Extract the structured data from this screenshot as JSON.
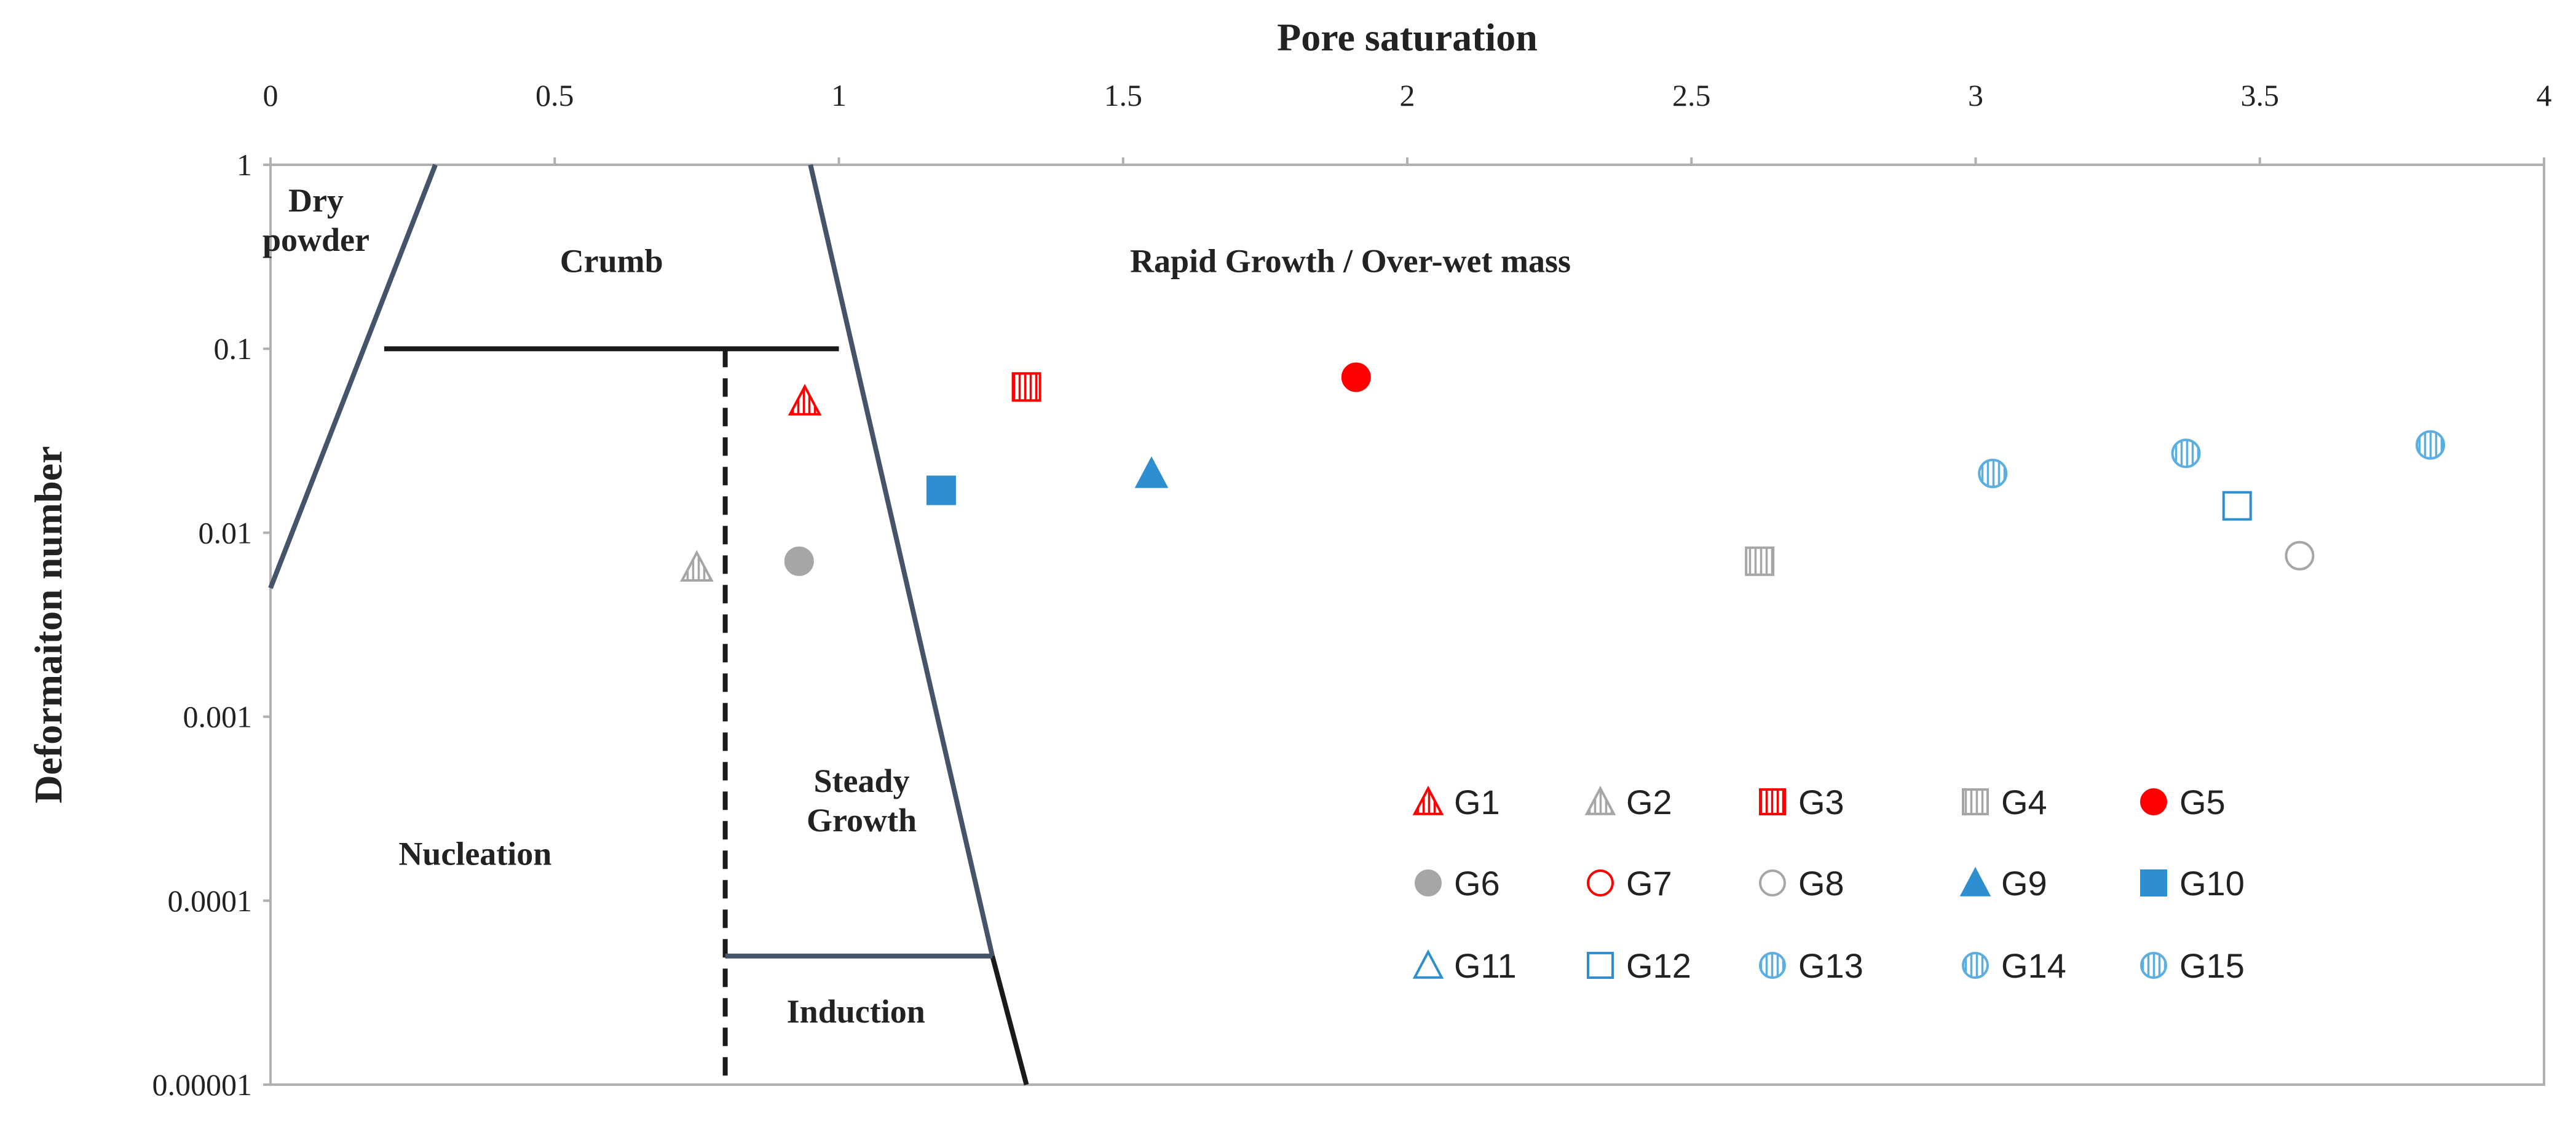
{
  "chart_data": {
    "type": "scatter",
    "title": "",
    "xlabel": "Pore saturation",
    "ylabel": "Deformaiton number",
    "xlim": [
      0,
      4
    ],
    "ylim": [
      1e-05,
      1
    ],
    "yscale": "log",
    "x_axis_position": "top",
    "x_ticks": [
      {
        "value": 0,
        "label": "0"
      },
      {
        "value": 0.5,
        "label": "0.5"
      },
      {
        "value": 1,
        "label": "1"
      },
      {
        "value": 1.5,
        "label": "1.5"
      },
      {
        "value": 2,
        "label": "2"
      },
      {
        "value": 2.5,
        "label": "2.5"
      },
      {
        "value": 3,
        "label": "3"
      },
      {
        "value": 3.5,
        "label": "3.5"
      },
      {
        "value": 4,
        "label": "4"
      }
    ],
    "y_ticks": [
      {
        "value": 1,
        "label": "1"
      },
      {
        "value": 0.1,
        "label": "0.1"
      },
      {
        "value": 0.01,
        "label": "0.01"
      },
      {
        "value": 0.001,
        "label": "0.001"
      },
      {
        "value": 0.0001,
        "label": "0.0001"
      },
      {
        "value": 1e-05,
        "label": "0.00001"
      }
    ],
    "grid": false,
    "legend_position": "bottom-right",
    "regime_lines": [
      {
        "name": "dry-powder-boundary",
        "points": [
          [
            0,
            0.005
          ],
          [
            0.29,
            1
          ]
        ],
        "style": "solid",
        "color": "#44546a"
      },
      {
        "name": "crumb-boundary",
        "points": [
          [
            0.2,
            0.1
          ],
          [
            1.0,
            0.1
          ]
        ],
        "style": "solid",
        "color": "#1a1a1a"
      },
      {
        "name": "rapid-growth-boundary",
        "points": [
          [
            0.95,
            1
          ],
          [
            1.27,
            5e-05
          ]
        ],
        "style": "solid",
        "color": "#44546a"
      },
      {
        "name": "induction-boundary-lower",
        "points": [
          [
            1.27,
            5e-05
          ],
          [
            1.33,
            1e-05
          ]
        ],
        "style": "solid",
        "color": "#1a1a1a"
      },
      {
        "name": "nucleation-divider",
        "points": [
          [
            0.8,
            0.1
          ],
          [
            0.8,
            1e-05
          ]
        ],
        "style": "dashed",
        "color": "#1a1a1a"
      },
      {
        "name": "induction-top",
        "points": [
          [
            0.8,
            5e-05
          ],
          [
            1.27,
            5e-05
          ]
        ],
        "style": "solid",
        "color": "#44546a"
      }
    ],
    "regions": [
      {
        "label_lines": [
          "Dry",
          "powder"
        ],
        "x": 0.08,
        "y": 0.5
      },
      {
        "label_lines": [
          "Crumb"
        ],
        "x": 0.6,
        "y": 0.3
      },
      {
        "label_lines": [
          "Rapid Growth / Over-wet mass"
        ],
        "x": 1.9,
        "y": 0.3
      },
      {
        "label_lines": [
          "Steady",
          "Growth"
        ],
        "x": 1.04,
        "y": 0.00035
      },
      {
        "label_lines": [
          "Nucleation"
        ],
        "x": 0.36,
        "y": 0.00018
      },
      {
        "label_lines": [
          "Induction"
        ],
        "x": 1.03,
        "y": 2.5e-05
      }
    ],
    "series": [
      {
        "name": "G1",
        "color": "#ff0000",
        "marker": "triangle-hatched",
        "x": 0.94,
        "y": 0.052
      },
      {
        "name": "G2",
        "color": "#a6a6a6",
        "marker": "triangle-hatched",
        "x": 0.75,
        "y": 0.0065
      },
      {
        "name": "G3",
        "color": "#ff0000",
        "marker": "square-hatched",
        "x": 1.33,
        "y": 0.062
      },
      {
        "name": "G4",
        "color": "#a6a6a6",
        "marker": "square-hatched",
        "x": 2.62,
        "y": 0.007
      },
      {
        "name": "G5",
        "color": "#ff0000",
        "marker": "circle-filled",
        "x": 1.91,
        "y": 0.07
      },
      {
        "name": "G6",
        "color": "#a6a6a6",
        "marker": "circle-filled",
        "x": 0.93,
        "y": 0.007
      },
      {
        "name": "G7",
        "color": "#ff0000",
        "marker": "circle-open",
        "x": null,
        "y": null
      },
      {
        "name": "G8",
        "color": "#a6a6a6",
        "marker": "circle-open",
        "x": 3.57,
        "y": 0.0075
      },
      {
        "name": "G9",
        "color": "#2e8fd0",
        "marker": "triangle-filled",
        "x": 1.55,
        "y": 0.021
      },
      {
        "name": "G10",
        "color": "#2e8fd0",
        "marker": "square-filled",
        "x": 1.18,
        "y": 0.017
      },
      {
        "name": "G11",
        "color": "#2e8fd0",
        "marker": "triangle-open",
        "x": null,
        "y": null
      },
      {
        "name": "G12",
        "color": "#2e8fd0",
        "marker": "square-open",
        "x": 3.46,
        "y": 0.014
      },
      {
        "name": "G13",
        "color": "#5aaee0",
        "marker": "circle-hatched",
        "x": 3.03,
        "y": 0.021
      },
      {
        "name": "G14",
        "color": "#5aaee0",
        "marker": "circle-hatched",
        "x": 3.37,
        "y": 0.027
      },
      {
        "name": "G15",
        "color": "#5aaee0",
        "marker": "circle-hatched",
        "x": 3.8,
        "y": 0.03
      }
    ]
  }
}
